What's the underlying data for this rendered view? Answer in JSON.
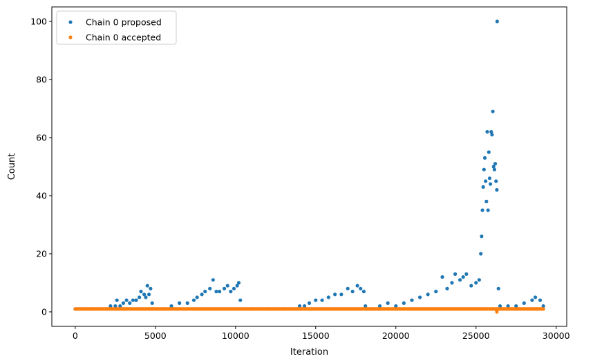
{
  "chart_data": {
    "type": "scatter",
    "title": "",
    "xlabel": "Iteration",
    "ylabel": "Count",
    "xlim": [
      -1460,
      30660
    ],
    "ylim": [
      -5,
      105
    ],
    "xticks": [
      0,
      5000,
      10000,
      15000,
      20000,
      25000,
      30000
    ],
    "xtick_labels": [
      "0",
      "5000",
      "10000",
      "15000",
      "20000",
      "25000",
      "30000"
    ],
    "yticks": [
      0,
      20,
      40,
      60,
      80,
      100
    ],
    "ytick_labels": [
      "0",
      "20",
      "40",
      "60",
      "80",
      "100"
    ],
    "grid": false,
    "legend_position": "upper-left",
    "series": [
      {
        "name": "Chain 0 proposed",
        "color": "#1f77b4",
        "points": [
          [
            0,
            1
          ],
          [
            1000,
            1
          ],
          [
            2000,
            1
          ],
          [
            2200,
            2
          ],
          [
            2500,
            2
          ],
          [
            2600,
            4
          ],
          [
            2800,
            2
          ],
          [
            3000,
            3
          ],
          [
            3200,
            4
          ],
          [
            3400,
            3
          ],
          [
            3600,
            4
          ],
          [
            3800,
            4
          ],
          [
            4000,
            5
          ],
          [
            4100,
            7
          ],
          [
            4300,
            6
          ],
          [
            4400,
            5
          ],
          [
            4500,
            9
          ],
          [
            4600,
            6
          ],
          [
            4700,
            8
          ],
          [
            4800,
            3
          ],
          [
            4850,
            1
          ],
          [
            5500,
            1
          ],
          [
            6000,
            2
          ],
          [
            6500,
            3
          ],
          [
            7000,
            3
          ],
          [
            7400,
            4
          ],
          [
            7600,
            5
          ],
          [
            7900,
            6
          ],
          [
            8100,
            7
          ],
          [
            8400,
            8
          ],
          [
            8600,
            11
          ],
          [
            8800,
            7
          ],
          [
            9000,
            7
          ],
          [
            9300,
            8
          ],
          [
            9500,
            9
          ],
          [
            9700,
            7
          ],
          [
            9900,
            8
          ],
          [
            10100,
            9
          ],
          [
            10200,
            10
          ],
          [
            10300,
            4
          ],
          [
            11000,
            1
          ],
          [
            12000,
            1
          ],
          [
            13000,
            1
          ],
          [
            14000,
            2
          ],
          [
            14300,
            2
          ],
          [
            14600,
            3
          ],
          [
            15000,
            4
          ],
          [
            15400,
            4
          ],
          [
            15800,
            5
          ],
          [
            16200,
            6
          ],
          [
            16600,
            6
          ],
          [
            17000,
            8
          ],
          [
            17300,
            7
          ],
          [
            17600,
            9
          ],
          [
            17800,
            8
          ],
          [
            18000,
            7
          ],
          [
            18100,
            2
          ],
          [
            18500,
            1
          ],
          [
            19000,
            2
          ],
          [
            19500,
            3
          ],
          [
            20000,
            2
          ],
          [
            20500,
            3
          ],
          [
            21000,
            4
          ],
          [
            21500,
            5
          ],
          [
            22000,
            6
          ],
          [
            22500,
            7
          ],
          [
            22900,
            12
          ],
          [
            23200,
            8
          ],
          [
            23500,
            10
          ],
          [
            23700,
            13
          ],
          [
            24000,
            11
          ],
          [
            24200,
            12
          ],
          [
            24400,
            13
          ],
          [
            24700,
            9
          ],
          [
            25000,
            10
          ],
          [
            25200,
            11
          ],
          [
            25300,
            20
          ],
          [
            25350,
            26
          ],
          [
            25400,
            35
          ],
          [
            25450,
            43
          ],
          [
            25500,
            49
          ],
          [
            25550,
            53
          ],
          [
            25600,
            45
          ],
          [
            25650,
            38
          ],
          [
            25700,
            62
          ],
          [
            25750,
            35
          ],
          [
            25800,
            55
          ],
          [
            25850,
            46
          ],
          [
            25900,
            44
          ],
          [
            25950,
            62
          ],
          [
            26000,
            61
          ],
          [
            26050,
            69
          ],
          [
            26100,
            50
          ],
          [
            26150,
            49
          ],
          [
            26200,
            51
          ],
          [
            26250,
            45
          ],
          [
            26300,
            42
          ],
          [
            26320,
            100
          ],
          [
            26400,
            8
          ],
          [
            26500,
            2
          ],
          [
            27000,
            2
          ],
          [
            27500,
            2
          ],
          [
            28000,
            3
          ],
          [
            28500,
            4
          ],
          [
            28700,
            5
          ],
          [
            29000,
            4
          ],
          [
            29200,
            2
          ]
        ]
      },
      {
        "name": "Chain 0 accepted",
        "color": "#ff7f0e",
        "x_range": [
          0,
          29200
        ],
        "value": 1,
        "outliers": [
          [
            26300,
            0
          ]
        ]
      }
    ]
  }
}
